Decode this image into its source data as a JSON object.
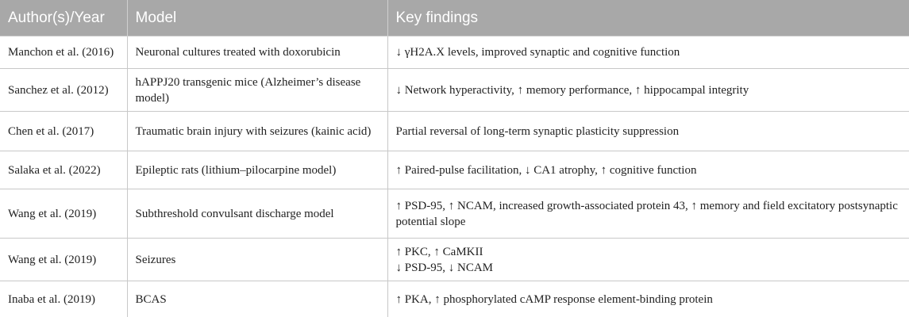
{
  "table": {
    "header": [
      "Author(s)/Year",
      "Model",
      "Key findings"
    ],
    "rows": [
      [
        "Manchon et al. (2016)",
        "Neuronal cultures treated with doxorubicin",
        "↓ γH2A.X levels, improved synaptic and cognitive function"
      ],
      [
        "Sanchez et al. (2012)",
        "hAPPJ20 transgenic mice (Alzheimer’s disease model)",
        "↓ Network hyperactivity, ↑ memory performance, ↑ hippocampal integrity"
      ],
      [
        "Chen et al. (2017)",
        "Traumatic brain injury with seizures (kainic acid)",
        "Partial reversal of long-term synaptic plasticity suppression"
      ],
      [
        "Salaka et al. (2022)",
        "Epileptic rats (lithium–pilocarpine model)",
        "↑ Paired-pulse facilitation, ↓ CA1 atrophy, ↑ cognitive function"
      ],
      [
        "Wang et al. (2019)",
        "Subthreshold convulsant discharge model",
        "↑ PSD-95, ↑ NCAM, increased growth-associated protein 43, ↑ memory and field excitatory postsynaptic potential slope"
      ],
      [
        "Wang et al. (2019)",
        "Seizures",
        [
          "↑ PKC, ↑ CaMKII",
          "↓ PSD-95, ↓ NCAM"
        ]
      ],
      [
        "Inaba et al. (2019)",
        "BCAS",
        "↑ PKA, ↑ phosphorylated cAMP response element-binding protein"
      ]
    ]
  }
}
